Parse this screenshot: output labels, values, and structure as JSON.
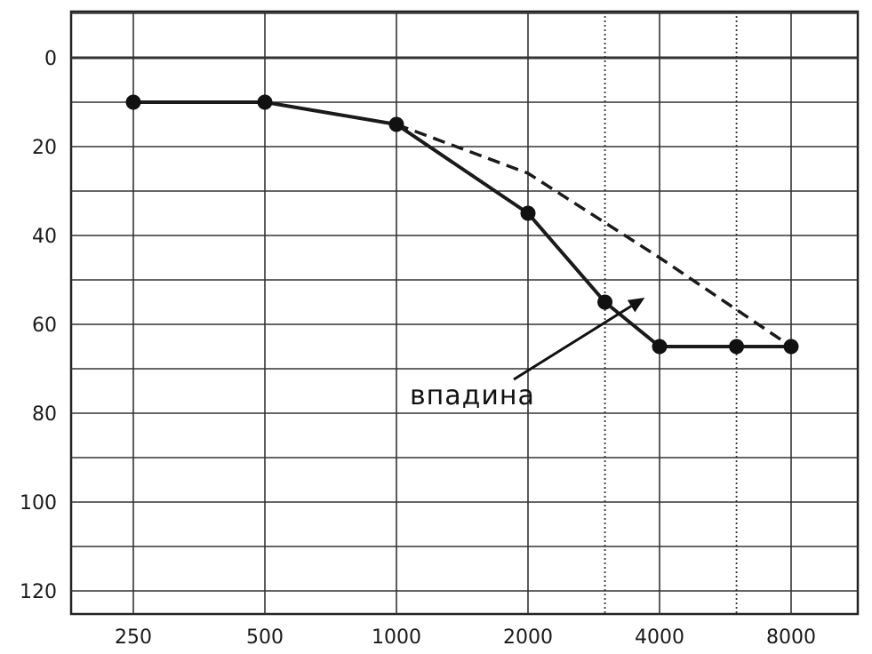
{
  "chart_data": {
    "type": "line",
    "x_scale": "octave",
    "x_tick_labels": [
      "250",
      "500",
      "1000",
      "2000",
      "4000",
      "8000"
    ],
    "x_intermediate_lines": [
      3000,
      6000
    ],
    "y_inverted": true,
    "ylim": [
      -10,
      125
    ],
    "y_tick_labels": [
      "0",
      "20",
      "40",
      "60",
      "80",
      "100",
      "120"
    ],
    "y_tick_values": [
      0,
      20,
      40,
      60,
      80,
      100,
      120
    ],
    "grid": true,
    "series": [
      {
        "style": "solid",
        "markers": true,
        "points": [
          {
            "x": 250,
            "y": 10
          },
          {
            "x": 500,
            "y": 10
          },
          {
            "x": 1000,
            "y": 15
          },
          {
            "x": 2000,
            "y": 35
          },
          {
            "x": 3000,
            "y": 55
          },
          {
            "x": 4000,
            "y": 65
          },
          {
            "x": 6000,
            "y": 65
          },
          {
            "x": 8000,
            "y": 65
          }
        ]
      },
      {
        "style": "dashed",
        "markers": false,
        "points": [
          {
            "x": 1000,
            "y": 15
          },
          {
            "x": 2000,
            "y": 26
          },
          {
            "x": 4000,
            "y": 45
          },
          {
            "x": 8000,
            "y": 65
          }
        ]
      }
    ],
    "annotation": {
      "text": "впадина",
      "arrow_to": {
        "x": 3700,
        "y": 54
      }
    }
  }
}
